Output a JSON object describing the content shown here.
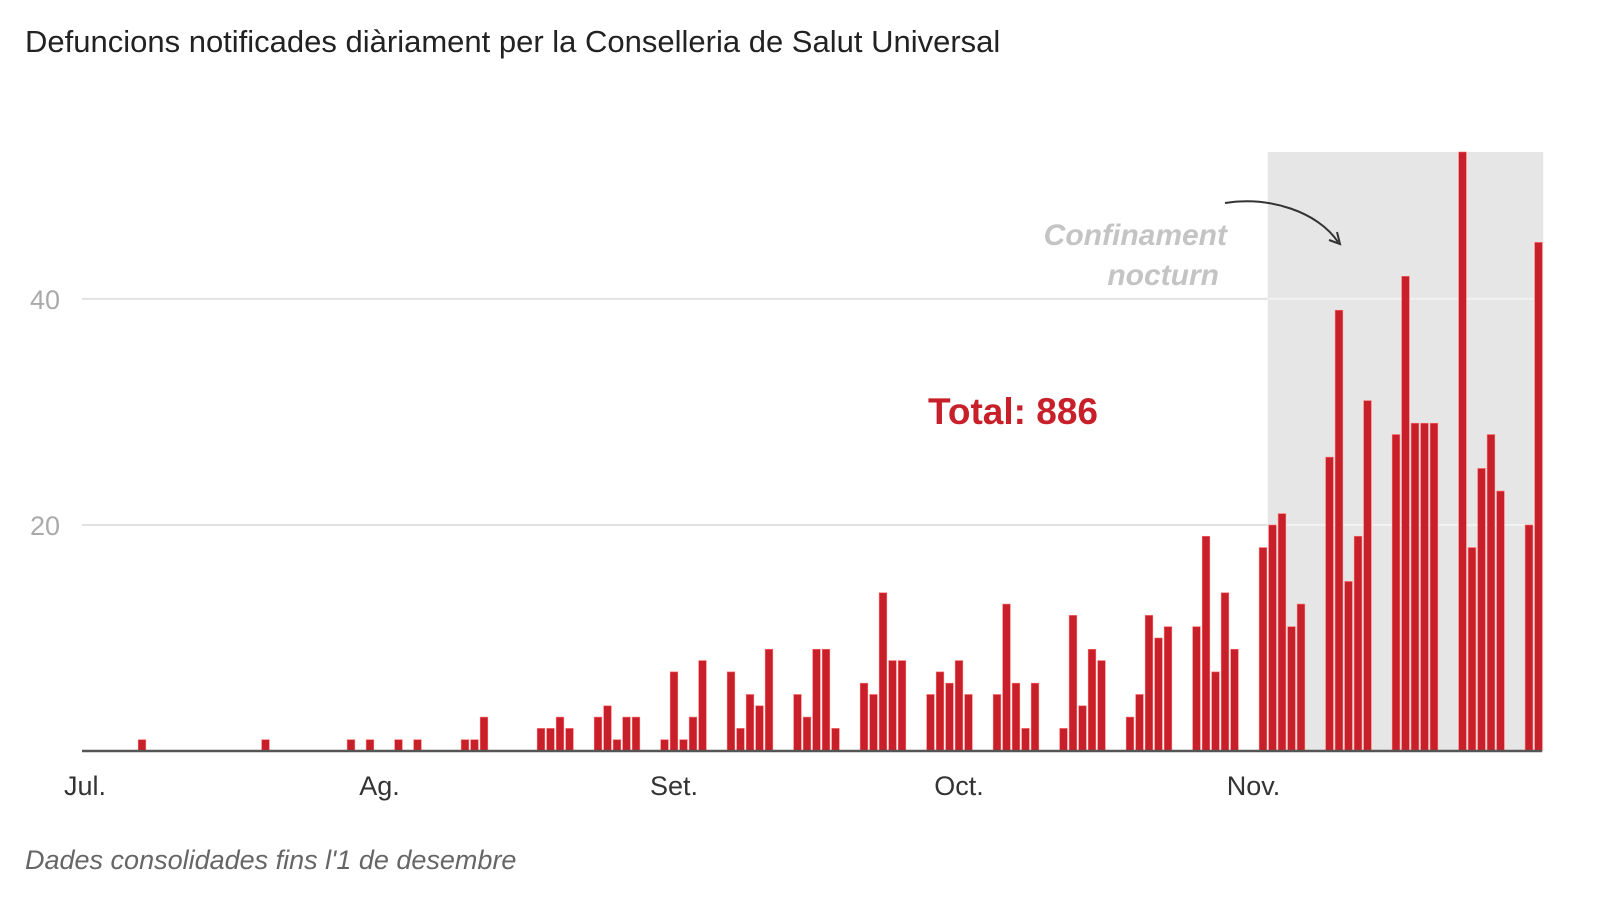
{
  "chart_data": {
    "type": "bar",
    "title": "Defuncions notificades diàriament per la Conselleria de Salut Universal",
    "footnote": "Dades consolidades fins l'1 de desembre",
    "xlabel": "",
    "ylabel": "",
    "ylim": [
      0,
      53
    ],
    "yticks": [
      20,
      40
    ],
    "xticks": [
      {
        "date": "Jul 1",
        "label": "Jul."
      },
      {
        "date": "Aug 1",
        "label": "Ag."
      },
      {
        "date": "Sep 1",
        "label": "Set."
      },
      {
        "date": "Oct 1",
        "label": "Oct."
      },
      {
        "date": "Nov 1",
        "label": "Nov."
      }
    ],
    "x_range": [
      "Jul 1",
      "Dec 1"
    ],
    "grid": "horizontal",
    "bar_color": "#c8202a",
    "shade_color": "#e6e6e6",
    "shaded_range": [
      "Nov 3",
      "Dec 1"
    ],
    "annotation": {
      "line1": "Confinament",
      "line2": "nocturn",
      "color": "#c4c4c4"
    },
    "total_label": "Total: 886",
    "total_color": "#c8202a",
    "points": [
      [
        "Jul 7",
        1
      ],
      [
        "Jul 20",
        1
      ],
      [
        "Jul 29",
        1
      ],
      [
        "Jul 31",
        1
      ],
      [
        "Aug 3",
        1
      ],
      [
        "Aug 5",
        1
      ],
      [
        "Aug 10",
        1
      ],
      [
        "Aug 11",
        1
      ],
      [
        "Aug 12",
        3
      ],
      [
        "Aug 18",
        2
      ],
      [
        "Aug 19",
        2
      ],
      [
        "Aug 20",
        3
      ],
      [
        "Aug 21",
        2
      ],
      [
        "Aug 24",
        3
      ],
      [
        "Aug 25",
        4
      ],
      [
        "Aug 26",
        1
      ],
      [
        "Aug 27",
        3
      ],
      [
        "Aug 28",
        3
      ],
      [
        "Aug 31",
        1
      ],
      [
        "Sep 1",
        7
      ],
      [
        "Sep 2",
        1
      ],
      [
        "Sep 3",
        3
      ],
      [
        "Sep 4",
        8
      ],
      [
        "Sep 7",
        7
      ],
      [
        "Sep 8",
        2
      ],
      [
        "Sep 9",
        5
      ],
      [
        "Sep 10",
        4
      ],
      [
        "Sep 11",
        9
      ],
      [
        "Sep 14",
        5
      ],
      [
        "Sep 15",
        3
      ],
      [
        "Sep 16",
        9
      ],
      [
        "Sep 17",
        9
      ],
      [
        "Sep 18",
        2
      ],
      [
        "Sep 21",
        6
      ],
      [
        "Sep 22",
        5
      ],
      [
        "Sep 23",
        14
      ],
      [
        "Sep 24",
        8
      ],
      [
        "Sep 25",
        8
      ],
      [
        "Sep 28",
        5
      ],
      [
        "Sep 29",
        7
      ],
      [
        "Sep 30",
        6
      ],
      [
        "Oct 1",
        8
      ],
      [
        "Oct 2",
        5
      ],
      [
        "Oct 5",
        5
      ],
      [
        "Oct 6",
        13
      ],
      [
        "Oct 7",
        6
      ],
      [
        "Oct 8",
        2
      ],
      [
        "Oct 9",
        6
      ],
      [
        "Oct 12",
        2
      ],
      [
        "Oct 13",
        12
      ],
      [
        "Oct 14",
        4
      ],
      [
        "Oct 15",
        9
      ],
      [
        "Oct 16",
        8
      ],
      [
        "Oct 19",
        3
      ],
      [
        "Oct 20",
        5
      ],
      [
        "Oct 21",
        12
      ],
      [
        "Oct 22",
        10
      ],
      [
        "Oct 23",
        11
      ],
      [
        "Oct 26",
        11
      ],
      [
        "Oct 27",
        19
      ],
      [
        "Oct 28",
        7
      ],
      [
        "Oct 29",
        14
      ],
      [
        "Oct 30",
        9
      ],
      [
        "Nov 2",
        18
      ],
      [
        "Nov 3",
        20
      ],
      [
        "Nov 4",
        21
      ],
      [
        "Nov 5",
        11
      ],
      [
        "Nov 6",
        13
      ],
      [
        "Nov 9",
        26
      ],
      [
        "Nov 10",
        39
      ],
      [
        "Nov 11",
        15
      ],
      [
        "Nov 12",
        19
      ],
      [
        "Nov 13",
        31
      ],
      [
        "Nov 16",
        28
      ],
      [
        "Nov 17",
        42
      ],
      [
        "Nov 18",
        29
      ],
      [
        "Nov 19",
        29
      ],
      [
        "Nov 20",
        29
      ],
      [
        "Nov 23",
        53
      ],
      [
        "Nov 24",
        18
      ],
      [
        "Nov 25",
        25
      ],
      [
        "Nov 26",
        28
      ],
      [
        "Nov 27",
        23
      ],
      [
        "Nov 30",
        20
      ],
      [
        "Dec 1",
        45
      ]
    ]
  }
}
